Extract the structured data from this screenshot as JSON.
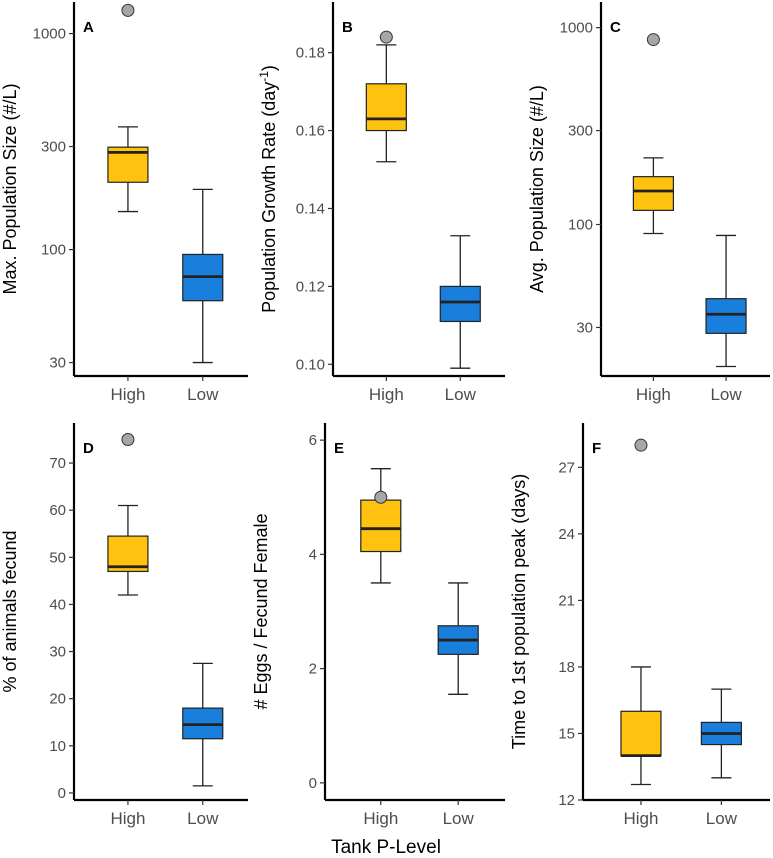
{
  "figure": {
    "x_axis_title": "Tank P-Level"
  },
  "colors": {
    "High": "#FFC20F",
    "Low": "#1A7EDC",
    "outlier": "#A6A6A6",
    "line": "#222222"
  },
  "chart_data": [
    {
      "panel": "A",
      "type": "boxplot",
      "scale": "log",
      "ylabel": "Max. Population Size (#/L)",
      "ylabel_sup": "",
      "ylabel_tail": "",
      "ylim": [
        26,
        1400
      ],
      "yticks": [
        30,
        100,
        300,
        1000
      ],
      "ytick_labels": [
        "30",
        "100",
        "300",
        "1000"
      ],
      "categories": [
        "High",
        "Low"
      ],
      "boxes": [
        {
          "category": "High",
          "whisker_low": 150,
          "q1": 205,
          "median": 282,
          "q3": 298,
          "whisker_high": 370,
          "outliers": [
            1280
          ]
        },
        {
          "category": "Low",
          "whisker_low": 30,
          "q1": 58,
          "median": 75,
          "q3": 95,
          "whisker_high": 190,
          "outliers": []
        }
      ]
    },
    {
      "panel": "B",
      "type": "boxplot",
      "scale": "linear",
      "ylabel": "Population Growth Rate (day",
      "ylabel_sup": "-1",
      "ylabel_tail": ")",
      "ylim": [
        0.097,
        0.193
      ],
      "yticks": [
        0.1,
        0.12,
        0.14,
        0.16,
        0.18
      ],
      "ytick_labels": [
        "0.10",
        "0.12",
        "0.14",
        "0.16",
        "0.18"
      ],
      "categories": [
        "High",
        "Low"
      ],
      "boxes": [
        {
          "category": "High",
          "whisker_low": 0.152,
          "q1": 0.16,
          "median": 0.163,
          "q3": 0.172,
          "whisker_high": 0.182,
          "outliers": [
            0.184
          ]
        },
        {
          "category": "Low",
          "whisker_low": 0.099,
          "q1": 0.111,
          "median": 0.116,
          "q3": 0.12,
          "whisker_high": 0.133,
          "outliers": []
        }
      ]
    },
    {
      "panel": "C",
      "type": "boxplot",
      "scale": "log",
      "ylabel": "Avg. Population Size (#/L)",
      "ylabel_sup": "",
      "ylabel_tail": "",
      "ylim": [
        17,
        1350
      ],
      "yticks": [
        30,
        100,
        300,
        1000
      ],
      "ytick_labels": [
        "30",
        "100",
        "300",
        "1000"
      ],
      "categories": [
        "High",
        "Low"
      ],
      "boxes": [
        {
          "category": "High",
          "whisker_low": 90,
          "q1": 118,
          "median": 148,
          "q3": 175,
          "whisker_high": 218,
          "outliers": [
            870
          ]
        },
        {
          "category": "Low",
          "whisker_low": 19,
          "q1": 28,
          "median": 35,
          "q3": 42,
          "whisker_high": 88,
          "outliers": []
        }
      ]
    },
    {
      "panel": "D",
      "type": "boxplot",
      "scale": "linear",
      "ylabel": "% of animals fecund",
      "ylabel_sup": "",
      "ylabel_tail": "",
      "ylim": [
        -1.5,
        78.5
      ],
      "yticks": [
        0,
        10,
        20,
        30,
        40,
        50,
        60,
        70
      ],
      "ytick_labels": [
        "0",
        "10",
        "20",
        "30",
        "40",
        "50",
        "60",
        "70"
      ],
      "categories": [
        "High",
        "Low"
      ],
      "boxes": [
        {
          "category": "High",
          "whisker_low": 42,
          "q1": 47,
          "median": 48,
          "q3": 54.5,
          "whisker_high": 61,
          "outliers": [
            75
          ]
        },
        {
          "category": "Low",
          "whisker_low": 1.5,
          "q1": 11.5,
          "median": 14.5,
          "q3": 18,
          "whisker_high": 27.5,
          "outliers": []
        }
      ]
    },
    {
      "panel": "E",
      "type": "boxplot",
      "scale": "linear",
      "ylabel": "# Eggs / Fecund Female",
      "ylabel_sup": "",
      "ylabel_tail": "",
      "ylim": [
        -0.3,
        6.3
      ],
      "yticks": [
        0,
        2,
        4,
        6
      ],
      "ytick_labels": [
        "0",
        "2",
        "4",
        "6"
      ],
      "categories": [
        "High",
        "Low"
      ],
      "boxes": [
        {
          "category": "High",
          "whisker_low": 3.5,
          "q1": 4.05,
          "median": 4.45,
          "q3": 4.95,
          "whisker_high": 5.5,
          "outliers": [
            5.0
          ]
        },
        {
          "category": "Low",
          "whisker_low": 1.55,
          "q1": 2.25,
          "median": 2.5,
          "q3": 2.75,
          "whisker_high": 3.5,
          "outliers": []
        }
      ]
    },
    {
      "panel": "F",
      "type": "boxplot",
      "scale": "linear",
      "ylabel": "Time to 1st population peak (days)",
      "ylabel_sup": "",
      "ylabel_tail": "",
      "ylim": [
        12.0,
        29.0
      ],
      "yticks": [
        12,
        15,
        18,
        21,
        24,
        27
      ],
      "ytick_labels": [
        "12",
        "15",
        "18",
        "21",
        "24",
        "27"
      ],
      "categories": [
        "High",
        "Low"
      ],
      "boxes": [
        {
          "category": "High",
          "whisker_low": 12.7,
          "q1": 14.0,
          "median": 14.0,
          "q3": 16.0,
          "whisker_high": 18.0,
          "outliers": [
            28.0
          ]
        },
        {
          "category": "Low",
          "whisker_low": 13.0,
          "q1": 14.5,
          "median": 15.0,
          "q3": 15.5,
          "whisker_high": 17.0,
          "outliers": []
        }
      ]
    }
  ]
}
